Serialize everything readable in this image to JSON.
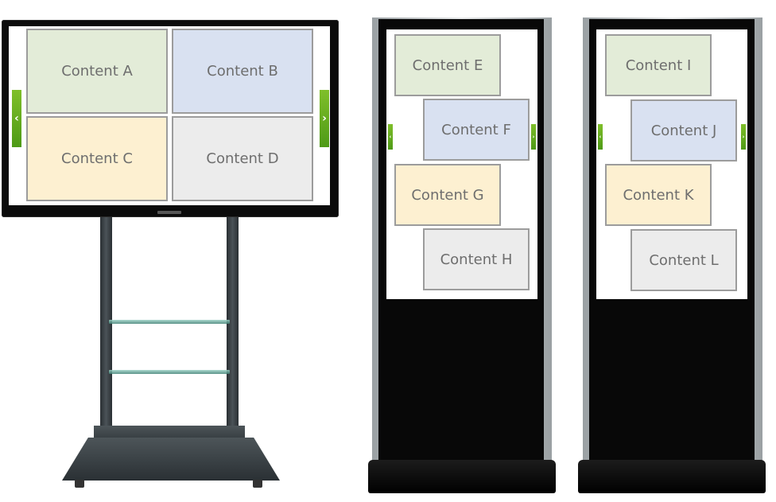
{
  "landscape_display": {
    "tiles": [
      "Content A",
      "Content B",
      "Content C",
      "Content D"
    ]
  },
  "kiosk_1": {
    "tiles": [
      "Content E",
      "Content F",
      "Content G",
      "Content H"
    ]
  },
  "kiosk_2": {
    "tiles": [
      "Content I",
      "Content J",
      "Content K",
      "Content L"
    ]
  },
  "icons": {
    "prev": "chevron-left-icon",
    "next": "chevron-right-icon"
  },
  "colors": {
    "tile_green": "#e3ecd8",
    "tile_blue": "#d9e1f1",
    "tile_yellow": "#fdf0d1",
    "tile_grey": "#ececec",
    "nav_arrow": "#6aae22"
  }
}
